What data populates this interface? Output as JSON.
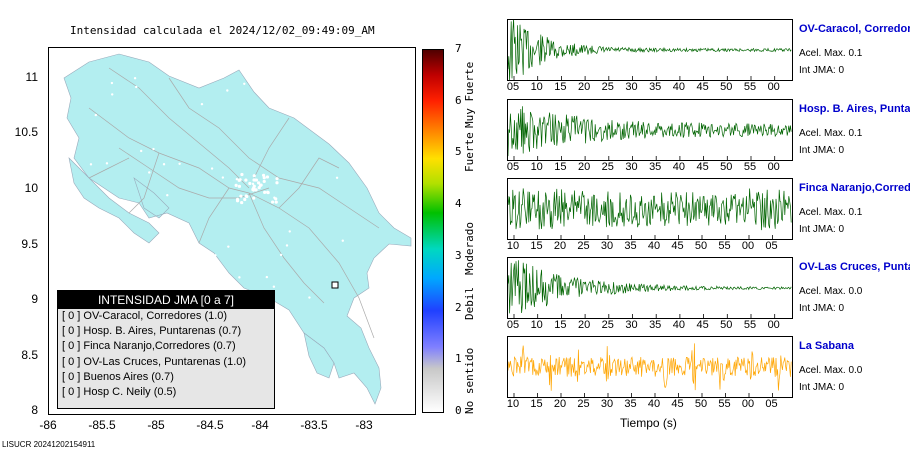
{
  "map": {
    "title": "Intensidad calculada el 2024/12/02_09:49:09_AM",
    "yticks": [
      "11",
      "10.5",
      "10",
      "9.5",
      "9",
      "8.5",
      "8"
    ],
    "xticks": [
      "-86",
      "-85.5",
      "-85",
      "-84.5",
      "-84",
      "-83.5",
      "-83"
    ],
    "legend_title": "INTENSIDAD JMA [0 a 7]",
    "legend_items": [
      "[ 0 ]  OV-Caracol, Corredores (1.0)",
      "[ 0 ]  Hosp. B. Aires, Puntarenas (0.7)",
      "[ 0 ]  Finca Naranjo,Corredores (0.7)",
      "[ 0 ]  OV-Las Cruces, Puntarenas (1.0)",
      "[ 0 ]  Buenos Aires (0.7)",
      "[ 0 ]  Hosp C. Neily (0.5)"
    ],
    "land_color": "#b3eef0"
  },
  "colorbar": {
    "ticks": [
      "7",
      "6",
      "5",
      "4",
      "3",
      "2",
      "1",
      "0"
    ],
    "labels": [
      "Muy Fuerte",
      "Fuerte",
      "Moderado",
      "Debil",
      "No sentido"
    ]
  },
  "traces": [
    {
      "name": "OV-Caracol, Corredores",
      "accel": "Acel. Max. 0.1",
      "jma": "Int JMA: 0",
      "color": "#006400",
      "ticks": [
        "05",
        "10",
        "15",
        "20",
        "25",
        "30",
        "35",
        "40",
        "45",
        "50",
        "55",
        "00"
      ],
      "shape": "decay-fast"
    },
    {
      "name": "Hosp. B. Aires, Puntarenas",
      "accel": "Acel. Max. 0.1",
      "jma": "Int JMA: 0",
      "color": "#006400",
      "ticks": [
        "05",
        "10",
        "15",
        "20",
        "25",
        "30",
        "35",
        "40",
        "45",
        "50",
        "55",
        "00"
      ],
      "shape": "decay-slow"
    },
    {
      "name": "Finca Naranjo,Corredores",
      "accel": "Acel. Max. 0.1",
      "jma": "Int JMA: 0",
      "color": "#006400",
      "ticks": [
        "10",
        "15",
        "20",
        "25",
        "30",
        "35",
        "40",
        "45",
        "50",
        "55",
        "00",
        "05"
      ],
      "shape": "sustained"
    },
    {
      "name": "OV-Las Cruces, Puntarenas",
      "accel": "Acel. Max. 0.0",
      "jma": "Int JMA: 0",
      "color": "#006400",
      "ticks": [
        "05",
        "10",
        "15",
        "20",
        "25",
        "30",
        "35",
        "40",
        "45",
        "50",
        "55",
        "00"
      ],
      "shape": "decay-medium"
    },
    {
      "name": "La Sabana",
      "accel": "Acel. Max. 0.0",
      "jma": "Int JMA: 0",
      "color": "#ffa500",
      "ticks": [
        "10",
        "15",
        "20",
        "25",
        "30",
        "35",
        "40",
        "45",
        "50",
        "55",
        "00",
        "05"
      ],
      "shape": "noise"
    }
  ],
  "x_axis_label": "Tiempo (s)",
  "footer": "LISUCR 20241202154911",
  "chart_data": [
    {
      "type": "heatmap",
      "title": "Intensidad calculada el 2024/12/02_09:49:09_AM",
      "xlim": [
        -86,
        -82.5
      ],
      "ylim": [
        8,
        11.3
      ],
      "colorbar_range": [
        0,
        7
      ]
    },
    {
      "type": "line",
      "xlabel": "Tiempo (s)",
      "series": [
        {
          "name": "OV-Caracol, Corredores"
        },
        {
          "name": "Hosp. B. Aires, Puntarenas"
        },
        {
          "name": "Finca Naranjo,Corredores"
        },
        {
          "name": "OV-Las Cruces, Puntarenas"
        },
        {
          "name": "La Sabana"
        }
      ]
    }
  ]
}
